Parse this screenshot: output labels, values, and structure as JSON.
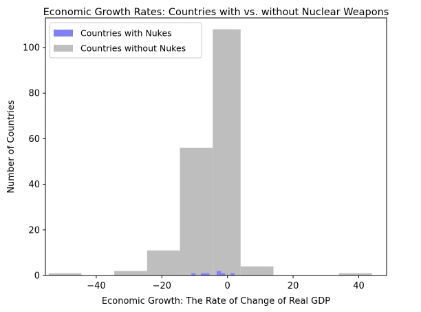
{
  "chart_data": {
    "type": "histogram",
    "title": "Economic Growth Rates: Countries with vs. without Nuclear Weapons",
    "xlabel": "Economic Growth: The Rate of Change of Real GDP",
    "ylabel": "Number of Countries",
    "xlim": [
      -55.5,
      48.5
    ],
    "ylim": [
      0,
      113
    ],
    "x_ticks": [
      -40,
      -20,
      0,
      20,
      40
    ],
    "y_ticks": [
      0,
      20,
      40,
      60,
      80,
      100
    ],
    "legend": {
      "placement": "upper-left"
    },
    "series": [
      {
        "name": "Countries without Nukes",
        "color": "#bebebe",
        "bins": [
          {
            "x0": -54.5,
            "x1": -44.5,
            "count": 1
          },
          {
            "x0": -44.5,
            "x1": -34.5,
            "count": 0
          },
          {
            "x0": -34.5,
            "x1": -24.5,
            "count": 2
          },
          {
            "x0": -24.5,
            "x1": -14.5,
            "count": 11
          },
          {
            "x0": -14.5,
            "x1": -4.5,
            "count": 56
          },
          {
            "x0": -4.5,
            "x1": 4,
            "count": 108
          },
          {
            "x0": 4,
            "x1": 14,
            "count": 4
          },
          {
            "x0": 14,
            "x1": 24,
            "count": 0
          },
          {
            "x0": 24,
            "x1": 34,
            "count": 0
          },
          {
            "x0": 34,
            "x1": 44,
            "count": 1
          }
        ]
      },
      {
        "name": "Countries with Nukes",
        "color": "#8080ff",
        "bins": [
          {
            "x0": -11.0,
            "x1": -9.7,
            "count": 1
          },
          {
            "x0": -8.1,
            "x1": -5.5,
            "count": 1
          },
          {
            "x0": -3.3,
            "x1": -2.0,
            "count": 2
          },
          {
            "x0": -2.0,
            "x1": -0.7,
            "count": 1
          },
          {
            "x0": 0.9,
            "x1": 2.2,
            "count": 1
          }
        ]
      }
    ]
  }
}
